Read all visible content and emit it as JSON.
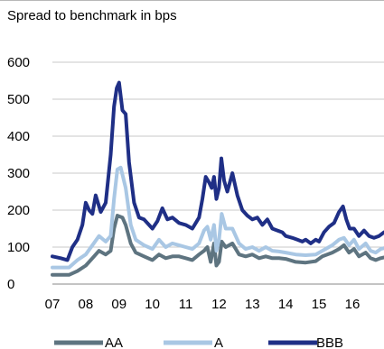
{
  "chart_data": {
    "type": "line",
    "title": "Spread to benchmark in bps",
    "ylim": [
      0,
      600
    ],
    "yticks": [
      0,
      100,
      200,
      300,
      400,
      500,
      600
    ],
    "xlim": [
      2007.0,
      2016.95
    ],
    "xticks": [
      {
        "value": 2007.0,
        "label": "07"
      },
      {
        "value": 2008.0,
        "label": "08"
      },
      {
        "value": 2009.0,
        "label": "09"
      },
      {
        "value": 2010.0,
        "label": "10"
      },
      {
        "value": 2011.0,
        "label": "11"
      },
      {
        "value": 2012.0,
        "label": "12"
      },
      {
        "value": 2013.0,
        "label": "13"
      },
      {
        "value": 2014.0,
        "label": "14"
      },
      {
        "value": 2015.0,
        "label": "15"
      },
      {
        "value": 2016.0,
        "label": "16"
      }
    ],
    "grid": "horizontal",
    "legend_position": "bottom",
    "series": [
      {
        "name": "AA",
        "color": "#5e7480",
        "points": [
          [
            2007.0,
            25
          ],
          [
            2007.5,
            25
          ],
          [
            2007.75,
            35
          ],
          [
            2008.0,
            50
          ],
          [
            2008.2,
            70
          ],
          [
            2008.4,
            90
          ],
          [
            2008.6,
            80
          ],
          [
            2008.75,
            90
          ],
          [
            2008.85,
            150
          ],
          [
            2008.95,
            185
          ],
          [
            2009.1,
            180
          ],
          [
            2009.2,
            160
          ],
          [
            2009.35,
            110
          ],
          [
            2009.5,
            85
          ],
          [
            2009.75,
            75
          ],
          [
            2010.0,
            65
          ],
          [
            2010.2,
            80
          ],
          [
            2010.4,
            70
          ],
          [
            2010.6,
            75
          ],
          [
            2010.8,
            75
          ],
          [
            2011.0,
            70
          ],
          [
            2011.2,
            65
          ],
          [
            2011.4,
            80
          ],
          [
            2011.55,
            90
          ],
          [
            2011.65,
            100
          ],
          [
            2011.75,
            60
          ],
          [
            2011.85,
            110
          ],
          [
            2011.92,
            50
          ],
          [
            2012.0,
            60
          ],
          [
            2012.08,
            115
          ],
          [
            2012.2,
            100
          ],
          [
            2012.4,
            110
          ],
          [
            2012.6,
            80
          ],
          [
            2012.8,
            75
          ],
          [
            2013.0,
            80
          ],
          [
            2013.2,
            70
          ],
          [
            2013.4,
            75
          ],
          [
            2013.6,
            70
          ],
          [
            2013.8,
            70
          ],
          [
            2014.0,
            68
          ],
          [
            2014.3,
            60
          ],
          [
            2014.6,
            58
          ],
          [
            2014.9,
            62
          ],
          [
            2015.1,
            75
          ],
          [
            2015.4,
            85
          ],
          [
            2015.6,
            95
          ],
          [
            2015.75,
            105
          ],
          [
            2015.9,
            85
          ],
          [
            2016.05,
            95
          ],
          [
            2016.2,
            75
          ],
          [
            2016.4,
            85
          ],
          [
            2016.55,
            70
          ],
          [
            2016.7,
            65
          ],
          [
            2016.85,
            70
          ],
          [
            2016.95,
            72
          ]
        ]
      },
      {
        "name": "A",
        "color": "#a9c7e4",
        "points": [
          [
            2007.0,
            45
          ],
          [
            2007.5,
            45
          ],
          [
            2007.75,
            65
          ],
          [
            2008.0,
            80
          ],
          [
            2008.2,
            105
          ],
          [
            2008.4,
            130
          ],
          [
            2008.6,
            115
          ],
          [
            2008.75,
            130
          ],
          [
            2008.85,
            230
          ],
          [
            2008.95,
            310
          ],
          [
            2009.05,
            315
          ],
          [
            2009.2,
            260
          ],
          [
            2009.35,
            160
          ],
          [
            2009.5,
            120
          ],
          [
            2009.75,
            105
          ],
          [
            2010.0,
            95
          ],
          [
            2010.2,
            120
          ],
          [
            2010.4,
            100
          ],
          [
            2010.6,
            110
          ],
          [
            2010.8,
            105
          ],
          [
            2011.0,
            100
          ],
          [
            2011.2,
            95
          ],
          [
            2011.4,
            110
          ],
          [
            2011.55,
            145
          ],
          [
            2011.65,
            155
          ],
          [
            2011.75,
            120
          ],
          [
            2011.85,
            160
          ],
          [
            2011.92,
            90
          ],
          [
            2012.0,
            120
          ],
          [
            2012.08,
            190
          ],
          [
            2012.2,
            150
          ],
          [
            2012.4,
            150
          ],
          [
            2012.6,
            110
          ],
          [
            2012.8,
            95
          ],
          [
            2013.0,
            100
          ],
          [
            2013.2,
            90
          ],
          [
            2013.4,
            100
          ],
          [
            2013.6,
            90
          ],
          [
            2013.8,
            88
          ],
          [
            2014.0,
            85
          ],
          [
            2014.3,
            80
          ],
          [
            2014.6,
            78
          ],
          [
            2014.9,
            80
          ],
          [
            2015.1,
            90
          ],
          [
            2015.4,
            105
          ],
          [
            2015.6,
            120
          ],
          [
            2015.75,
            125
          ],
          [
            2015.9,
            105
          ],
          [
            2016.05,
            120
          ],
          [
            2016.2,
            95
          ],
          [
            2016.4,
            110
          ],
          [
            2016.55,
            90
          ],
          [
            2016.7,
            85
          ],
          [
            2016.85,
            95
          ],
          [
            2016.95,
            97
          ]
        ]
      },
      {
        "name": "BBB",
        "color": "#1f2f86",
        "points": [
          [
            2007.0,
            75
          ],
          [
            2007.25,
            70
          ],
          [
            2007.45,
            65
          ],
          [
            2007.6,
            100
          ],
          [
            2007.75,
            120
          ],
          [
            2007.9,
            160
          ],
          [
            2008.0,
            220
          ],
          [
            2008.1,
            200
          ],
          [
            2008.2,
            190
          ],
          [
            2008.3,
            240
          ],
          [
            2008.45,
            195
          ],
          [
            2008.6,
            220
          ],
          [
            2008.75,
            350
          ],
          [
            2008.85,
            480
          ],
          [
            2008.93,
            530
          ],
          [
            2009.0,
            545
          ],
          [
            2009.1,
            470
          ],
          [
            2009.2,
            460
          ],
          [
            2009.3,
            330
          ],
          [
            2009.45,
            220
          ],
          [
            2009.6,
            180
          ],
          [
            2009.75,
            175
          ],
          [
            2010.0,
            150
          ],
          [
            2010.15,
            170
          ],
          [
            2010.3,
            205
          ],
          [
            2010.45,
            175
          ],
          [
            2010.6,
            180
          ],
          [
            2010.8,
            165
          ],
          [
            2011.0,
            160
          ],
          [
            2011.2,
            150
          ],
          [
            2011.4,
            180
          ],
          [
            2011.5,
            230
          ],
          [
            2011.6,
            290
          ],
          [
            2011.7,
            275
          ],
          [
            2011.78,
            260
          ],
          [
            2011.85,
            290
          ],
          [
            2011.92,
            230
          ],
          [
            2012.0,
            260
          ],
          [
            2012.07,
            340
          ],
          [
            2012.15,
            280
          ],
          [
            2012.25,
            250
          ],
          [
            2012.4,
            300
          ],
          [
            2012.55,
            240
          ],
          [
            2012.7,
            200
          ],
          [
            2012.85,
            185
          ],
          [
            2013.0,
            175
          ],
          [
            2013.15,
            180
          ],
          [
            2013.3,
            160
          ],
          [
            2013.45,
            175
          ],
          [
            2013.6,
            150
          ],
          [
            2013.75,
            145
          ],
          [
            2013.9,
            140
          ],
          [
            2014.0,
            130
          ],
          [
            2014.2,
            125
          ],
          [
            2014.35,
            120
          ],
          [
            2014.5,
            115
          ],
          [
            2014.6,
            120
          ],
          [
            2014.75,
            110
          ],
          [
            2014.9,
            120
          ],
          [
            2015.0,
            115
          ],
          [
            2015.15,
            140
          ],
          [
            2015.3,
            155
          ],
          [
            2015.45,
            165
          ],
          [
            2015.6,
            195
          ],
          [
            2015.72,
            210
          ],
          [
            2015.82,
            175
          ],
          [
            2015.92,
            150
          ],
          [
            2016.05,
            150
          ],
          [
            2016.2,
            130
          ],
          [
            2016.35,
            145
          ],
          [
            2016.5,
            130
          ],
          [
            2016.65,
            125
          ],
          [
            2016.8,
            130
          ],
          [
            2016.95,
            140
          ]
        ]
      }
    ]
  }
}
